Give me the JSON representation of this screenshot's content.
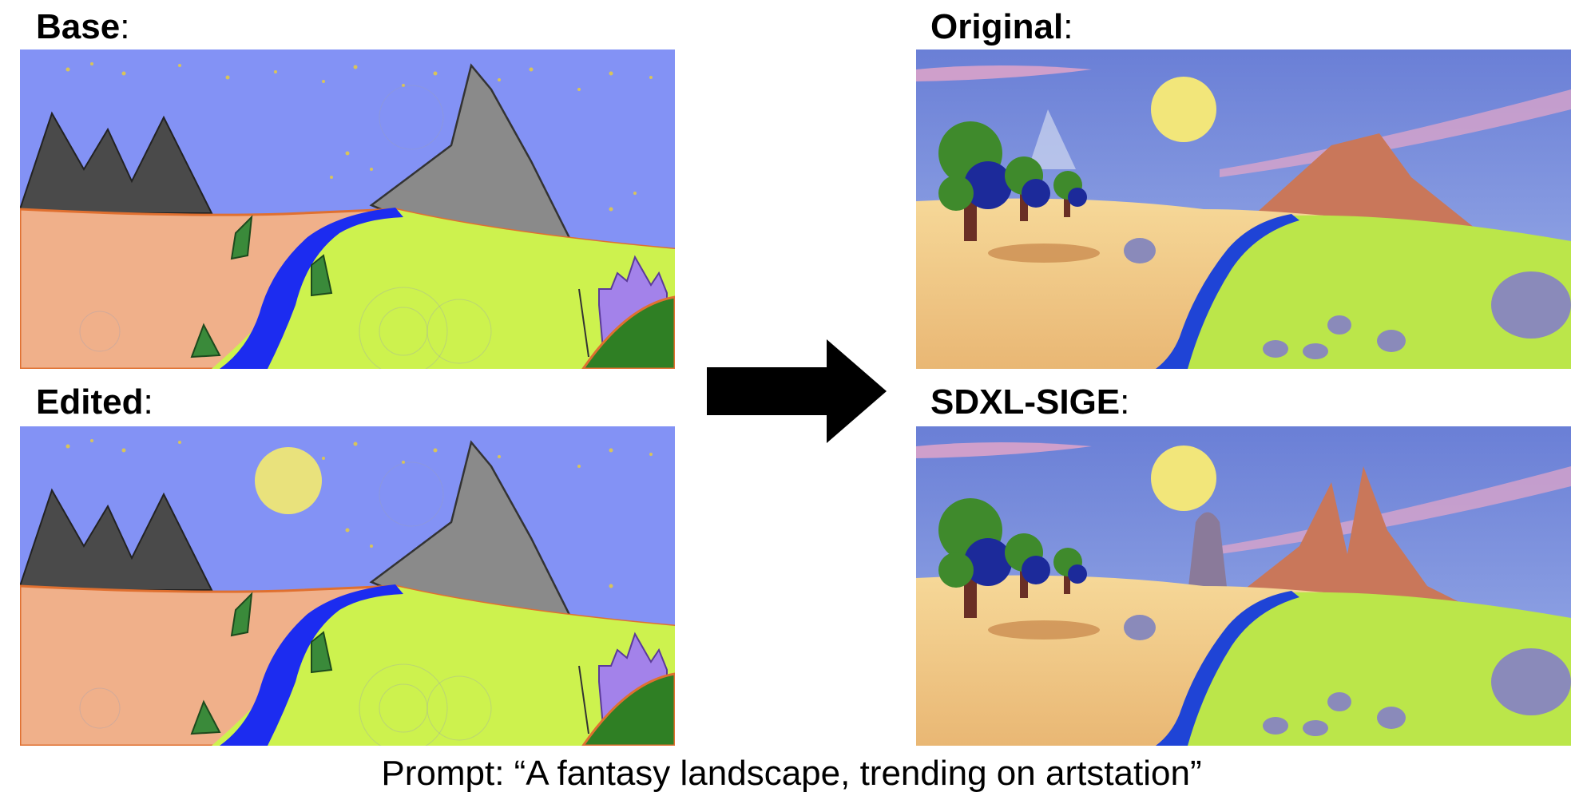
{
  "labels": {
    "base": "Base",
    "edited": "Edited",
    "original": "Original",
    "sige": "SDXL-SIGE",
    "colon": ":"
  },
  "prompt": "Prompt: “A fantasy landscape, trending on artstation”",
  "panels": {
    "base": {
      "kind": "sketch",
      "sun": false
    },
    "edited": {
      "kind": "sketch",
      "sun": true
    },
    "original": {
      "kind": "render",
      "variant": "original"
    },
    "sige": {
      "kind": "render",
      "variant": "sige"
    }
  },
  "colors": {
    "sketch_sky": "#8392f5",
    "sketch_sand": "#f0b08a",
    "sketch_grass": "#cdf24e",
    "sketch_river": "#1c2cf0",
    "sketch_mountain_dark": "#4a4a4a",
    "sketch_mountain_gray": "#8a8a8a",
    "sketch_castle": "#a382ea",
    "sketch_hill": "#2f7f24",
    "sketch_sun": "#e9e27c",
    "render_sky": "#6f85d8",
    "render_sun": "#f2e67a",
    "render_sand": "#f2c98a",
    "render_grass": "#bbe64a",
    "render_river": "#1f44d6",
    "render_rock": "#c9775a"
  },
  "icons": {
    "arrow": "right-arrow-icon"
  }
}
